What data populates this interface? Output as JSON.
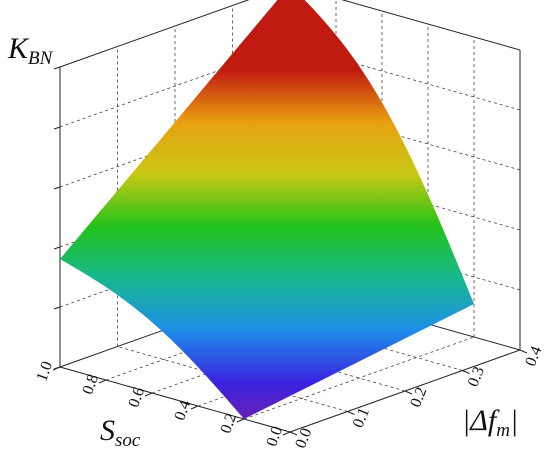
{
  "chart_data": {
    "type": "surface3d",
    "title": "",
    "z_label": {
      "main": "K",
      "sub": "BN"
    },
    "x_label": {
      "main": "S",
      "sub": "soc"
    },
    "y_label": {
      "main": "|Δf",
      "sub": "m",
      "tail": "|"
    },
    "x_axis": {
      "range": [
        0.0,
        1.0
      ],
      "ticks": [
        "0.0",
        "0.2",
        "0.4",
        "0.6",
        "0.8",
        "1.0"
      ]
    },
    "y_axis": {
      "range": [
        0.0,
        0.4
      ],
      "ticks": [
        "0.0",
        "0.1",
        "0.2",
        "0.3",
        "0.4"
      ]
    },
    "z_axis": {
      "range": [
        0.0,
        1.0
      ],
      "tick_labels_shown": false
    },
    "grid": true,
    "colormap": [
      "#7a1fa0",
      "#3b22e0",
      "#1e8de8",
      "#18b890",
      "#22c21a",
      "#c8c814",
      "#e8a010",
      "#c01a10"
    ],
    "surface_corners": [
      {
        "S_soc": 0.2,
        "delta_f": 0.0,
        "K_BN": 0.0
      },
      {
        "S_soc": 1.0,
        "delta_f": 0.0,
        "K_BN": 0.36
      },
      {
        "S_soc": 1.0,
        "delta_f": 0.4,
        "K_BN": 1.0
      },
      {
        "S_soc": 0.2,
        "delta_f": 0.4,
        "K_BN": 0.11
      }
    ]
  }
}
